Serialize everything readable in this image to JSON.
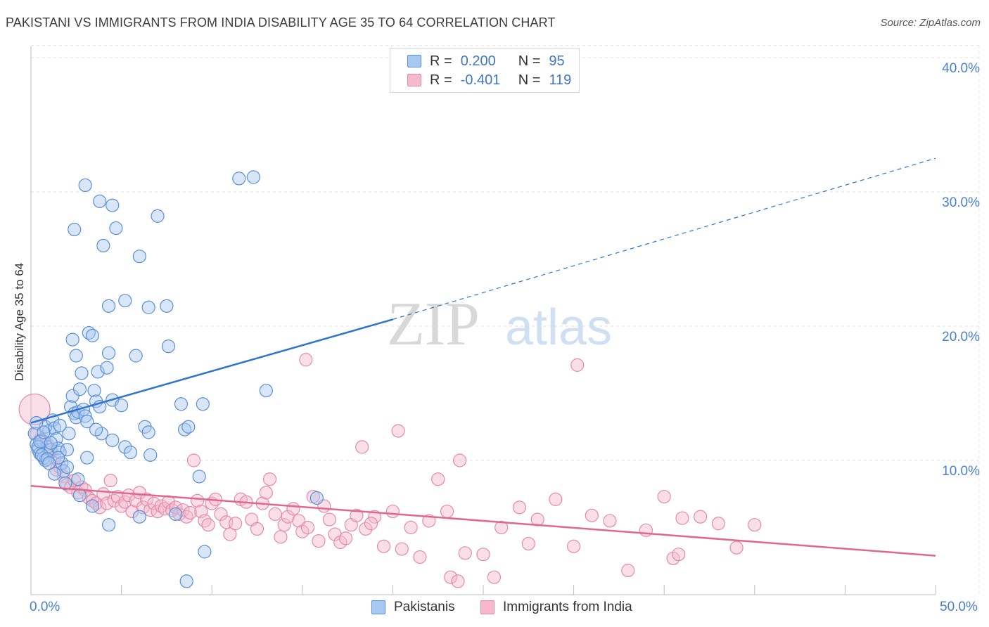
{
  "header": {
    "title": "PAKISTANI VS IMMIGRANTS FROM INDIA DISABILITY AGE 35 TO 64 CORRELATION CHART",
    "source": "Source: ZipAtlas.com"
  },
  "watermark": {
    "zip": "ZIP",
    "atlas": "atlas"
  },
  "legend": {
    "r_label": "R =",
    "n_label": "N =",
    "series1": {
      "r": "0.200",
      "n": "95"
    },
    "series2": {
      "r": "-0.401",
      "n": "119"
    }
  },
  "colors": {
    "pakistanis_fill": "#a9c8f0",
    "pakistanis_stroke": "#5b8fd6",
    "pakistanis_line": "#2f74d0",
    "india_fill": "#f5b8cc",
    "india_stroke": "#e58aa8",
    "india_line": "#e0678f",
    "tick_text": "#4a7fd0"
  },
  "chart_data": {
    "type": "scatter",
    "title": "PAKISTANI VS IMMIGRANTS FROM INDIA DISABILITY AGE 35 TO 64 CORRELATION CHART",
    "xlabel": "",
    "ylabel": "Disability Age 35 to 64",
    "xlim": [
      0,
      50
    ],
    "ylim": [
      0,
      41
    ],
    "x_tick_labels": [
      "0.0%",
      "50.0%"
    ],
    "y_ticks": [
      10,
      20,
      30,
      40
    ],
    "y_tick_labels": [
      "10.0%",
      "20.0%",
      "30.0%",
      "40.0%"
    ],
    "grid": true,
    "legend_position": "top-center",
    "series": [
      {
        "name": "Pakistanis",
        "r": 0.2,
        "n": 95,
        "trend": {
          "x0": 0,
          "y0": 12.8,
          "x1": 20,
          "y1": 20.5,
          "dashed_to_x": 50,
          "dashed_to_y": 32.5
        },
        "points": [
          [
            0.2,
            12.0
          ],
          [
            0.3,
            11.2
          ],
          [
            0.4,
            10.8
          ],
          [
            0.5,
            10.5
          ],
          [
            0.6,
            11.5
          ],
          [
            0.7,
            10.2
          ],
          [
            0.8,
            10.0
          ],
          [
            0.9,
            11.0
          ],
          [
            1.0,
            12.2
          ],
          [
            1.1,
            10.8
          ],
          [
            0.4,
            11.0
          ],
          [
            0.6,
            10.4
          ],
          [
            0.8,
            12.5
          ],
          [
            1.2,
            13.0
          ],
          [
            1.3,
            12.4
          ],
          [
            1.4,
            11.6
          ],
          [
            1.5,
            10.9
          ],
          [
            1.6,
            10.6
          ],
          [
            1.7,
            9.8
          ],
          [
            1.8,
            9.2
          ],
          [
            1.9,
            8.3
          ],
          [
            2.0,
            9.5
          ],
          [
            2.1,
            12.0
          ],
          [
            2.2,
            14.0
          ],
          [
            2.3,
            14.8
          ],
          [
            2.4,
            13.5
          ],
          [
            2.5,
            13.2
          ],
          [
            2.6,
            13.6
          ],
          [
            2.7,
            15.3
          ],
          [
            2.8,
            16.5
          ],
          [
            2.9,
            13.8
          ],
          [
            3.0,
            13.3
          ],
          [
            3.1,
            12.9
          ],
          [
            3.2,
            19.5
          ],
          [
            3.4,
            19.3
          ],
          [
            3.5,
            15.2
          ],
          [
            3.6,
            14.4
          ],
          [
            3.7,
            16.6
          ],
          [
            3.8,
            14.0
          ],
          [
            3.9,
            12.0
          ],
          [
            2.3,
            19.0
          ],
          [
            2.5,
            17.8
          ],
          [
            2.4,
            27.2
          ],
          [
            3.0,
            30.5
          ],
          [
            3.8,
            29.3
          ],
          [
            4.0,
            26.0
          ],
          [
            4.3,
            21.5
          ],
          [
            4.5,
            29.0
          ],
          [
            4.7,
            27.3
          ],
          [
            5.2,
            21.9
          ],
          [
            4.3,
            18.0
          ],
          [
            4.2,
            16.9
          ],
          [
            4.5,
            14.5
          ],
          [
            5.0,
            14.1
          ],
          [
            4.5,
            11.5
          ],
          [
            5.2,
            11.0
          ],
          [
            5.5,
            10.6
          ],
          [
            5.8,
            17.8
          ],
          [
            6.0,
            25.2
          ],
          [
            6.3,
            12.5
          ],
          [
            6.5,
            12.1
          ],
          [
            6.6,
            10.4
          ],
          [
            6.5,
            21.4
          ],
          [
            7.0,
            28.2
          ],
          [
            7.5,
            21.5
          ],
          [
            7.6,
            18.5
          ],
          [
            8.3,
            14.2
          ],
          [
            8.5,
            12.3
          ],
          [
            8.7,
            12.5
          ],
          [
            9.5,
            14.2
          ],
          [
            9.3,
            8.8
          ],
          [
            8.0,
            6.0
          ],
          [
            6.0,
            5.8
          ],
          [
            4.3,
            5.2
          ],
          [
            3.4,
            6.6
          ],
          [
            2.7,
            7.4
          ],
          [
            9.6,
            3.2
          ],
          [
            8.6,
            1.0
          ],
          [
            11.5,
            31.0
          ],
          [
            12.3,
            31.1
          ],
          [
            13.0,
            15.2
          ],
          [
            15.8,
            7.2
          ],
          [
            1.5,
            10.2
          ],
          [
            0.9,
            10.1
          ],
          [
            1.3,
            9.0
          ],
          [
            2.0,
            10.8
          ],
          [
            1.0,
            9.8
          ],
          [
            0.5,
            11.4
          ],
          [
            0.7,
            12.1
          ],
          [
            1.1,
            11.3
          ],
          [
            3.1,
            10.2
          ],
          [
            2.6,
            8.6
          ],
          [
            3.6,
            12.3
          ],
          [
            1.6,
            12.6
          ],
          [
            0.3,
            12.8
          ]
        ]
      },
      {
        "name": "Immigrants from India",
        "r": -0.401,
        "n": 119,
        "trend": {
          "x0": 0,
          "y0": 8.1,
          "x1": 50,
          "y1": 2.9
        },
        "points": [
          [
            0.2,
            13.8
          ],
          [
            0.3,
            12.0
          ],
          [
            0.5,
            11.5
          ],
          [
            0.7,
            10.8
          ],
          [
            0.9,
            11.2
          ],
          [
            1.1,
            10.6
          ],
          [
            1.3,
            10.2
          ],
          [
            1.4,
            9.3
          ],
          [
            1.6,
            9.5
          ],
          [
            1.8,
            8.8
          ],
          [
            2.0,
            8.2
          ],
          [
            2.2,
            8.0
          ],
          [
            2.4,
            8.5
          ],
          [
            2.6,
            7.6
          ],
          [
            2.8,
            8.0
          ],
          [
            3.0,
            7.8
          ],
          [
            3.2,
            7.2
          ],
          [
            3.4,
            7.0
          ],
          [
            3.6,
            6.8
          ],
          [
            3.8,
            6.5
          ],
          [
            4.0,
            7.5
          ],
          [
            4.2,
            6.8
          ],
          [
            4.4,
            8.5
          ],
          [
            4.6,
            7.0
          ],
          [
            4.8,
            7.3
          ],
          [
            5.0,
            6.6
          ],
          [
            5.2,
            6.9
          ],
          [
            5.4,
            7.4
          ],
          [
            5.6,
            6.2
          ],
          [
            5.8,
            7.0
          ],
          [
            6.0,
            7.6
          ],
          [
            6.2,
            6.5
          ],
          [
            6.4,
            7.1
          ],
          [
            6.6,
            6.3
          ],
          [
            6.8,
            6.8
          ],
          [
            7.0,
            6.2
          ],
          [
            7.2,
            6.6
          ],
          [
            7.4,
            6.4
          ],
          [
            7.6,
            6.9
          ],
          [
            7.8,
            6.3
          ],
          [
            8.0,
            6.5
          ],
          [
            8.2,
            6.0
          ],
          [
            8.4,
            6.3
          ],
          [
            8.6,
            5.8
          ],
          [
            8.8,
            6.1
          ],
          [
            9.0,
            10.0
          ],
          [
            9.2,
            7.0
          ],
          [
            9.4,
            6.2
          ],
          [
            9.6,
            5.5
          ],
          [
            9.8,
            5.2
          ],
          [
            10.0,
            6.8
          ],
          [
            10.2,
            7.1
          ],
          [
            10.5,
            6.0
          ],
          [
            10.8,
            5.4
          ],
          [
            11.0,
            4.5
          ],
          [
            11.3,
            5.3
          ],
          [
            11.6,
            7.1
          ],
          [
            11.9,
            6.9
          ],
          [
            12.2,
            5.6
          ],
          [
            12.5,
            4.9
          ],
          [
            12.8,
            6.8
          ],
          [
            13.0,
            7.6
          ],
          [
            13.2,
            8.6
          ],
          [
            13.5,
            6.0
          ],
          [
            13.8,
            4.3
          ],
          [
            14.0,
            5.2
          ],
          [
            14.2,
            5.8
          ],
          [
            14.5,
            6.4
          ],
          [
            14.8,
            5.5
          ],
          [
            15.0,
            4.7
          ],
          [
            15.3,
            5.0
          ],
          [
            15.6,
            7.3
          ],
          [
            15.9,
            4.0
          ],
          [
            16.2,
            6.6
          ],
          [
            16.5,
            5.6
          ],
          [
            16.8,
            4.5
          ],
          [
            17.1,
            3.9
          ],
          [
            17.4,
            4.2
          ],
          [
            17.7,
            5.2
          ],
          [
            18.0,
            5.9
          ],
          [
            18.5,
            4.9
          ],
          [
            19.0,
            5.8
          ],
          [
            19.5,
            3.6
          ],
          [
            20.0,
            6.2
          ],
          [
            20.5,
            3.4
          ],
          [
            21.0,
            5.0
          ],
          [
            21.5,
            2.8
          ],
          [
            22.0,
            5.5
          ],
          [
            23.0,
            6.2
          ],
          [
            24.0,
            3.1
          ],
          [
            25.0,
            3.0
          ],
          [
            26.0,
            5.0
          ],
          [
            27.0,
            6.5
          ],
          [
            28.0,
            5.6
          ],
          [
            29.0,
            7.1
          ],
          [
            30.0,
            3.6
          ],
          [
            31.0,
            5.9
          ],
          [
            32.0,
            5.5
          ],
          [
            33.0,
            1.8
          ],
          [
            34.0,
            4.8
          ],
          [
            35.0,
            7.3
          ],
          [
            36.0,
            5.7
          ],
          [
            37.0,
            5.8
          ],
          [
            38.0,
            5.3
          ],
          [
            39.0,
            3.5
          ],
          [
            40.0,
            5.2
          ],
          [
            35.5,
            2.7
          ],
          [
            35.8,
            3.0
          ],
          [
            23.2,
            1.3
          ],
          [
            25.6,
            1.3
          ],
          [
            18.3,
            11.0
          ],
          [
            18.8,
            5.3
          ],
          [
            20.3,
            12.2
          ],
          [
            22.5,
            8.6
          ],
          [
            27.5,
            3.8
          ],
          [
            23.7,
            10.0
          ],
          [
            15.2,
            17.5
          ],
          [
            30.2,
            17.1
          ],
          [
            23.6,
            1.0
          ]
        ]
      }
    ]
  }
}
